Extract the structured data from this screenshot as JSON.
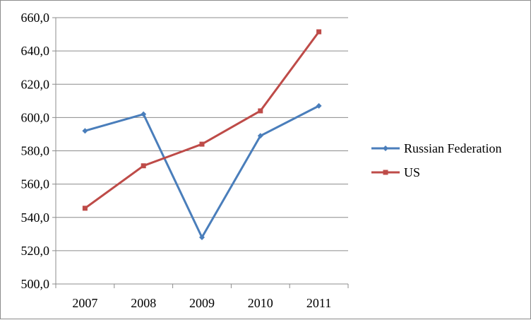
{
  "chart_data": {
    "type": "line",
    "title": "",
    "xlabel": "",
    "ylabel": "",
    "categories": [
      "2007",
      "2008",
      "2009",
      "2010",
      "2011"
    ],
    "ylim": [
      500,
      660
    ],
    "ytick_step": 20,
    "ytick_labels": [
      "500,0",
      "520,0",
      "540,0",
      "560,0",
      "580,0",
      "600,0",
      "620,0",
      "640,0",
      "660,0"
    ],
    "grid": true,
    "legend_position": "right",
    "series": [
      {
        "name": "Russian Federation",
        "values": [
          592,
          602,
          528,
          589,
          607
        ],
        "color": "#4a7ebb",
        "marker": "diamond"
      },
      {
        "name": "US",
        "values": [
          545.5,
          571,
          584,
          604,
          651.5
        ],
        "color": "#be4b48",
        "marker": "square"
      }
    ]
  }
}
